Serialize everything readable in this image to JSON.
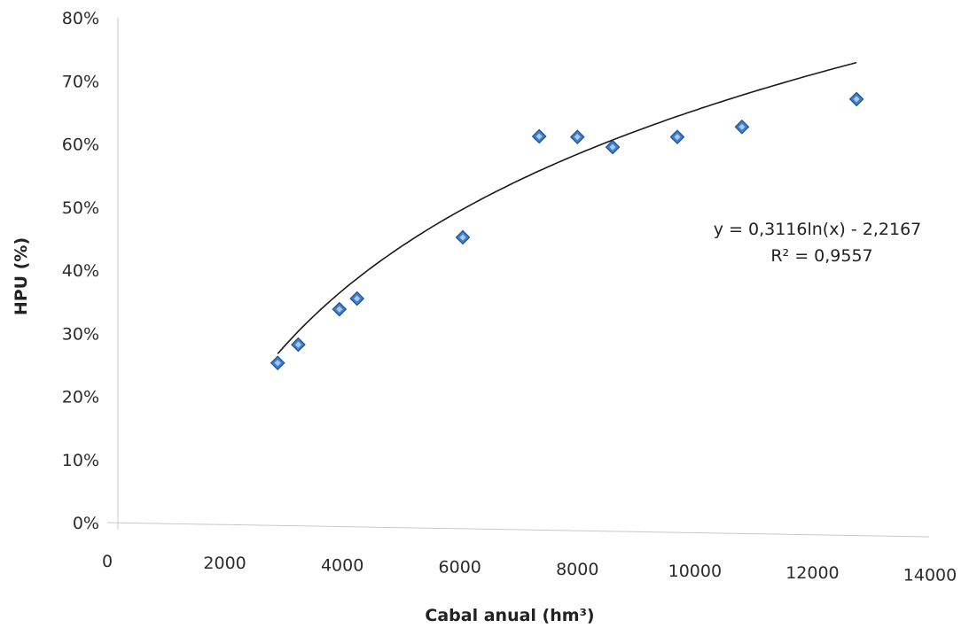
{
  "chart_data": {
    "type": "scatter",
    "title": "",
    "xlabel": "Cabal anual (hm³)",
    "ylabel": "HPU (%)",
    "xlim": [
      0,
      14000
    ],
    "ylim": [
      0,
      0.8
    ],
    "x_ticks": [
      "0",
      "2000",
      "4000",
      "6000",
      "8000",
      "10000",
      "12000",
      "14000"
    ],
    "y_ticks": [
      "0%",
      "10%",
      "20%",
      "30%",
      "40%",
      "50%",
      "60%",
      "70%",
      "80%"
    ],
    "grid": false,
    "marker": "diamond",
    "marker_color": "#3f7fd0",
    "trend_color": "#1a1a1a",
    "series": [
      {
        "points": [
          {
            "x": 2900,
            "y": 0.253
          },
          {
            "x": 3250,
            "y": 0.282
          },
          {
            "x": 3950,
            "y": 0.338
          },
          {
            "x": 4250,
            "y": 0.355
          },
          {
            "x": 6050,
            "y": 0.452
          },
          {
            "x": 7350,
            "y": 0.612
          },
          {
            "x": 8000,
            "y": 0.611
          },
          {
            "x": 8600,
            "y": 0.595
          },
          {
            "x": 9700,
            "y": 0.611
          },
          {
            "x": 10800,
            "y": 0.627
          },
          {
            "x": 12750,
            "y": 0.671
          }
        ]
      }
    ],
    "trendline": {
      "type": "logarithmic",
      "a": 0.3116,
      "b": -2.2167,
      "x_range": [
        2900,
        12750
      ],
      "equation": "y = 0,3116ln(x) - 2,2167",
      "r_squared": "R² = 0,9557"
    }
  }
}
